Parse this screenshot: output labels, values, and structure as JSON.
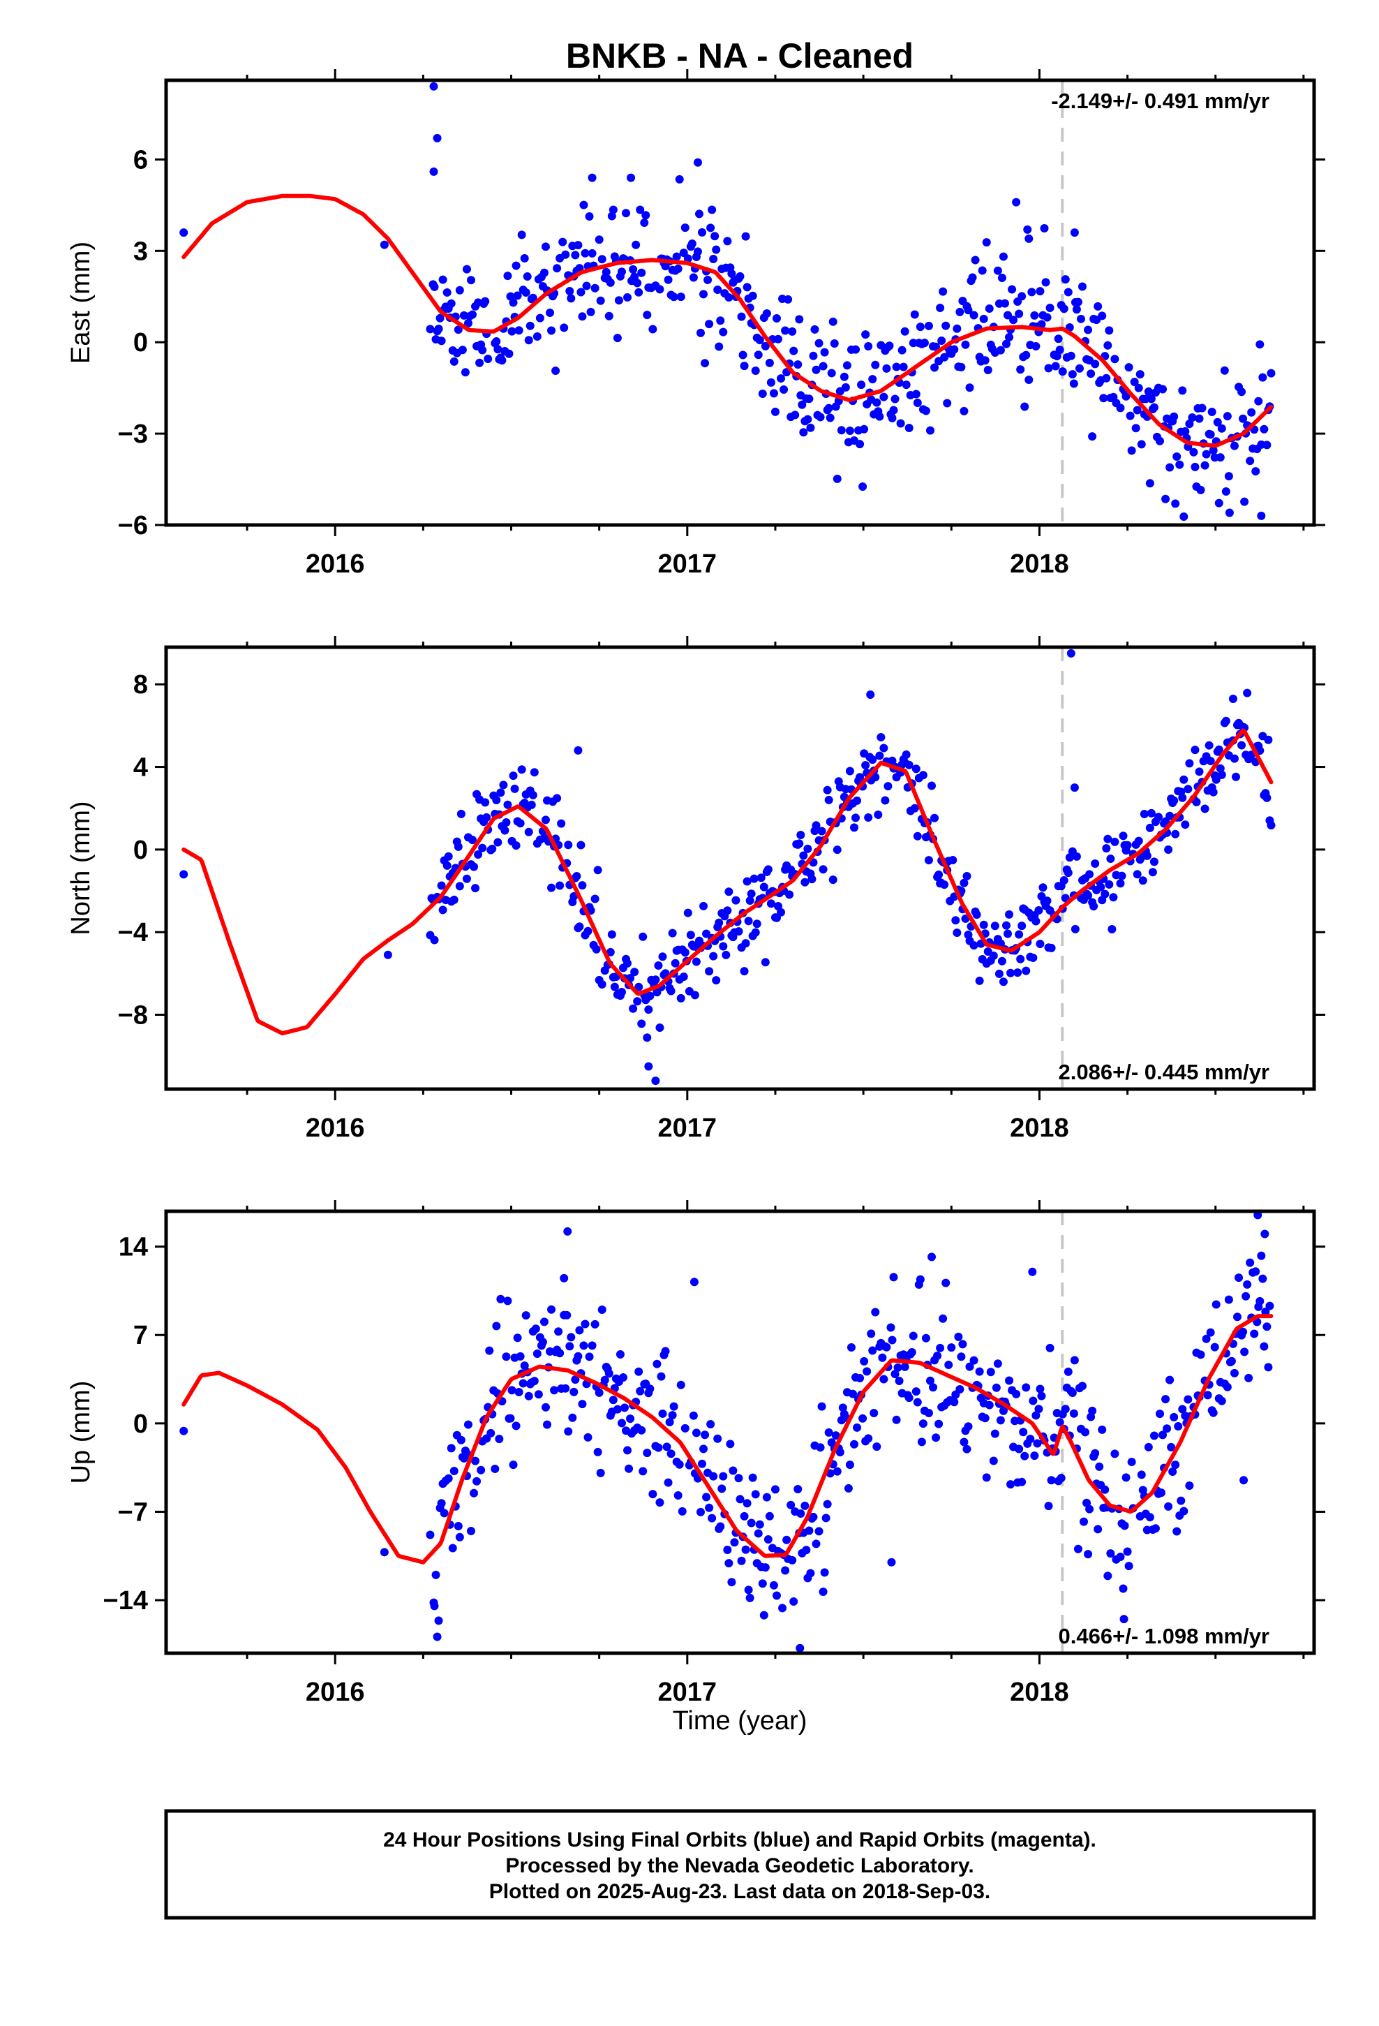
{
  "chart_data": {
    "type": "scatter",
    "title": "BNKB  - NA - Cleaned",
    "xlabel": "Time (year)",
    "xlim": [
      2015.52,
      2018.78
    ],
    "x_ticks": [
      2016,
      2017,
      2018
    ],
    "colors": {
      "data": "#0000ff",
      "model": "#ff0000",
      "break": "#c8c8c8"
    },
    "offset_epoch": 2018.065,
    "footer": [
      "24 Hour Positions Using Final Orbits (blue) and Rapid Orbits (magenta).",
      "Processed by the Nevada Geodetic Laboratory.",
      "Plotted on 2025-Aug-23. Last data on 2018-Sep-03."
    ],
    "panels": [
      {
        "name": "East",
        "ylabel": "East (mm)",
        "ylim": [
          -6,
          8.6
        ],
        "y_ticks": [
          -6,
          -3,
          0,
          3,
          6
        ],
        "y_tick_labels": [
          "−6",
          "−3",
          "0",
          "3",
          "6"
        ],
        "rate": "-2.149+/- 0.491 mm/yr",
        "rate_position": "top-right",
        "model": {
          "x": [
            2015.57,
            2015.65,
            2015.75,
            2015.85,
            2015.93,
            2016.0,
            2016.08,
            2016.15,
            2016.2,
            2016.25,
            2016.3,
            2016.38,
            2016.45,
            2016.52,
            2016.6,
            2016.7,
            2016.8,
            2016.9,
            2017.0,
            2017.08,
            2017.15,
            2017.22,
            2017.3,
            2017.38,
            2017.46,
            2017.55,
            2017.65,
            2017.75,
            2017.85,
            2017.95,
            2018.03,
            2018.065,
            2018.1,
            2018.18,
            2018.26,
            2018.34,
            2018.42,
            2018.5,
            2018.58,
            2018.66
          ],
          "y": [
            2.8,
            3.9,
            4.6,
            4.8,
            4.8,
            4.7,
            4.2,
            3.4,
            2.6,
            1.8,
            1.0,
            0.4,
            0.35,
            0.8,
            1.6,
            2.3,
            2.6,
            2.7,
            2.6,
            2.3,
            1.4,
            0.2,
            -1.0,
            -1.6,
            -1.9,
            -1.6,
            -0.8,
            0.0,
            0.45,
            0.5,
            0.4,
            0.45,
            0.2,
            -0.6,
            -1.7,
            -2.7,
            -3.3,
            -3.4,
            -3.0,
            -2.1
          ]
        },
        "points": {
          "seed": 11,
          "x_start": 2016.27,
          "x_end": 2018.66,
          "step": 0.004,
          "noise": 1.1,
          "extra": [
            [
              2015.57,
              3.6
            ],
            [
              2016.14,
              3.2
            ],
            [
              2016.28,
              8.4
            ],
            [
              2016.29,
              6.7
            ],
            [
              2016.28,
              5.6
            ],
            [
              2016.73,
              5.4
            ],
            [
              2016.84,
              5.4
            ],
            [
              2017.03,
              5.9
            ],
            [
              2017.97,
              3.4
            ],
            [
              2018.1,
              3.6
            ],
            [
              2018.54,
              -5.6
            ],
            [
              2018.63,
              -5.7
            ]
          ]
        }
      },
      {
        "name": "North",
        "ylabel": "North (mm)",
        "ylim": [
          -11.6,
          9.8
        ],
        "y_ticks": [
          -8,
          -4,
          0,
          4,
          8
        ],
        "y_tick_labels": [
          "−8",
          "−4",
          "0",
          "4",
          "8"
        ],
        "rate": "2.086+/- 0.445 mm/yr",
        "rate_position": "bottom-right",
        "model": {
          "x": [
            2015.57,
            2015.62,
            2015.7,
            2015.78,
            2015.85,
            2015.92,
            2016.0,
            2016.08,
            2016.15,
            2016.22,
            2016.3,
            2016.38,
            2016.45,
            2016.52,
            2016.6,
            2016.7,
            2016.78,
            2016.86,
            2016.92,
            2017.0,
            2017.08,
            2017.16,
            2017.24,
            2017.3,
            2017.38,
            2017.46,
            2017.55,
            2017.62,
            2017.7,
            2017.78,
            2017.85,
            2017.92,
            2018.0,
            2018.065,
            2018.12,
            2018.2,
            2018.28,
            2018.36,
            2018.44,
            2018.52,
            2018.58,
            2018.66
          ],
          "y": [
            0.0,
            -0.5,
            -4.5,
            -8.3,
            -8.9,
            -8.6,
            -7.0,
            -5.3,
            -4.4,
            -3.6,
            -2.3,
            -0.3,
            1.5,
            2.1,
            1.0,
            -2.5,
            -5.5,
            -7.0,
            -6.6,
            -5.4,
            -4.2,
            -3.1,
            -2.2,
            -1.5,
            0.2,
            2.5,
            4.2,
            3.8,
            0.5,
            -2.6,
            -4.6,
            -4.9,
            -4.0,
            -2.8,
            -2.0,
            -1.0,
            -0.2,
            1.0,
            2.6,
            4.6,
            5.8,
            3.2
          ]
        },
        "points": {
          "seed": 23,
          "x_start": 2016.27,
          "x_end": 2018.66,
          "step": 0.004,
          "noise": 1.05,
          "extra": [
            [
              2015.57,
              -1.2
            ],
            [
              2016.15,
              -5.1
            ],
            [
              2016.69,
              4.8
            ],
            [
              2016.91,
              -11.2
            ],
            [
              2016.89,
              -10.5
            ],
            [
              2017.52,
              7.5
            ],
            [
              2017.72,
              -1.6
            ],
            [
              2018.09,
              9.5
            ],
            [
              2018.1,
              3.0
            ],
            [
              2018.55,
              7.3
            ]
          ]
        }
      },
      {
        "name": "Up",
        "ylabel": "Up (mm)",
        "ylim": [
          -18.2,
          16.8
        ],
        "y_ticks": [
          -14,
          -7,
          0,
          7,
          14
        ],
        "y_tick_labels": [
          "−14",
          "−7",
          "0",
          "7",
          "14"
        ],
        "rate": "0.466+/- 1.098 mm/yr",
        "rate_position": "bottom-right",
        "model": {
          "x": [
            2015.57,
            2015.62,
            2015.67,
            2015.75,
            2015.85,
            2015.95,
            2016.03,
            2016.1,
            2016.18,
            2016.25,
            2016.3,
            2016.36,
            2016.43,
            2016.5,
            2016.58,
            2016.66,
            2016.74,
            2016.82,
            2016.9,
            2016.98,
            2017.06,
            2017.14,
            2017.22,
            2017.28,
            2017.34,
            2017.42,
            2017.5,
            2017.58,
            2017.66,
            2017.74,
            2017.82,
            2017.9,
            2017.98,
            2018.04,
            2018.065,
            2018.09,
            2018.14,
            2018.2,
            2018.26,
            2018.32,
            2018.4,
            2018.48,
            2018.56,
            2018.62,
            2018.66
          ],
          "y": [
            1.5,
            3.8,
            4.0,
            3.0,
            1.5,
            -0.5,
            -3.5,
            -7.0,
            -10.5,
            -11.0,
            -9.5,
            -4.5,
            0.5,
            3.5,
            4.5,
            4.2,
            3.2,
            2.0,
            0.5,
            -1.5,
            -5.0,
            -8.5,
            -10.5,
            -10.4,
            -7.5,
            -2.0,
            2.5,
            5.0,
            4.8,
            3.8,
            2.8,
            1.5,
            0.0,
            -2.5,
            -0.2,
            -1.5,
            -4.5,
            -6.5,
            -7.0,
            -5.5,
            -1.5,
            3.5,
            7.5,
            8.5,
            8.5
          ]
        },
        "points": {
          "seed": 37,
          "x_start": 2016.27,
          "x_end": 2018.66,
          "step": 0.004,
          "noise": 2.9,
          "extra": [
            [
              2015.57,
              -0.6
            ],
            [
              2016.14,
              -10.2
            ],
            [
              2016.29,
              -16.9
            ],
            [
              2016.28,
              -14.2
            ],
            [
              2016.66,
              15.2
            ],
            [
              2016.65,
              11.5
            ],
            [
              2017.02,
              11.2
            ],
            [
              2017.32,
              -17.8
            ],
            [
              2017.58,
              -11.0
            ],
            [
              2017.98,
              12.0
            ],
            [
              2018.1,
              5.0
            ],
            [
              2018.24,
              -15.5
            ],
            [
              2018.58,
              -4.5
            ],
            [
              2018.62,
              16.5
            ],
            [
              2018.64,
              15.0
            ]
          ]
        }
      }
    ]
  }
}
